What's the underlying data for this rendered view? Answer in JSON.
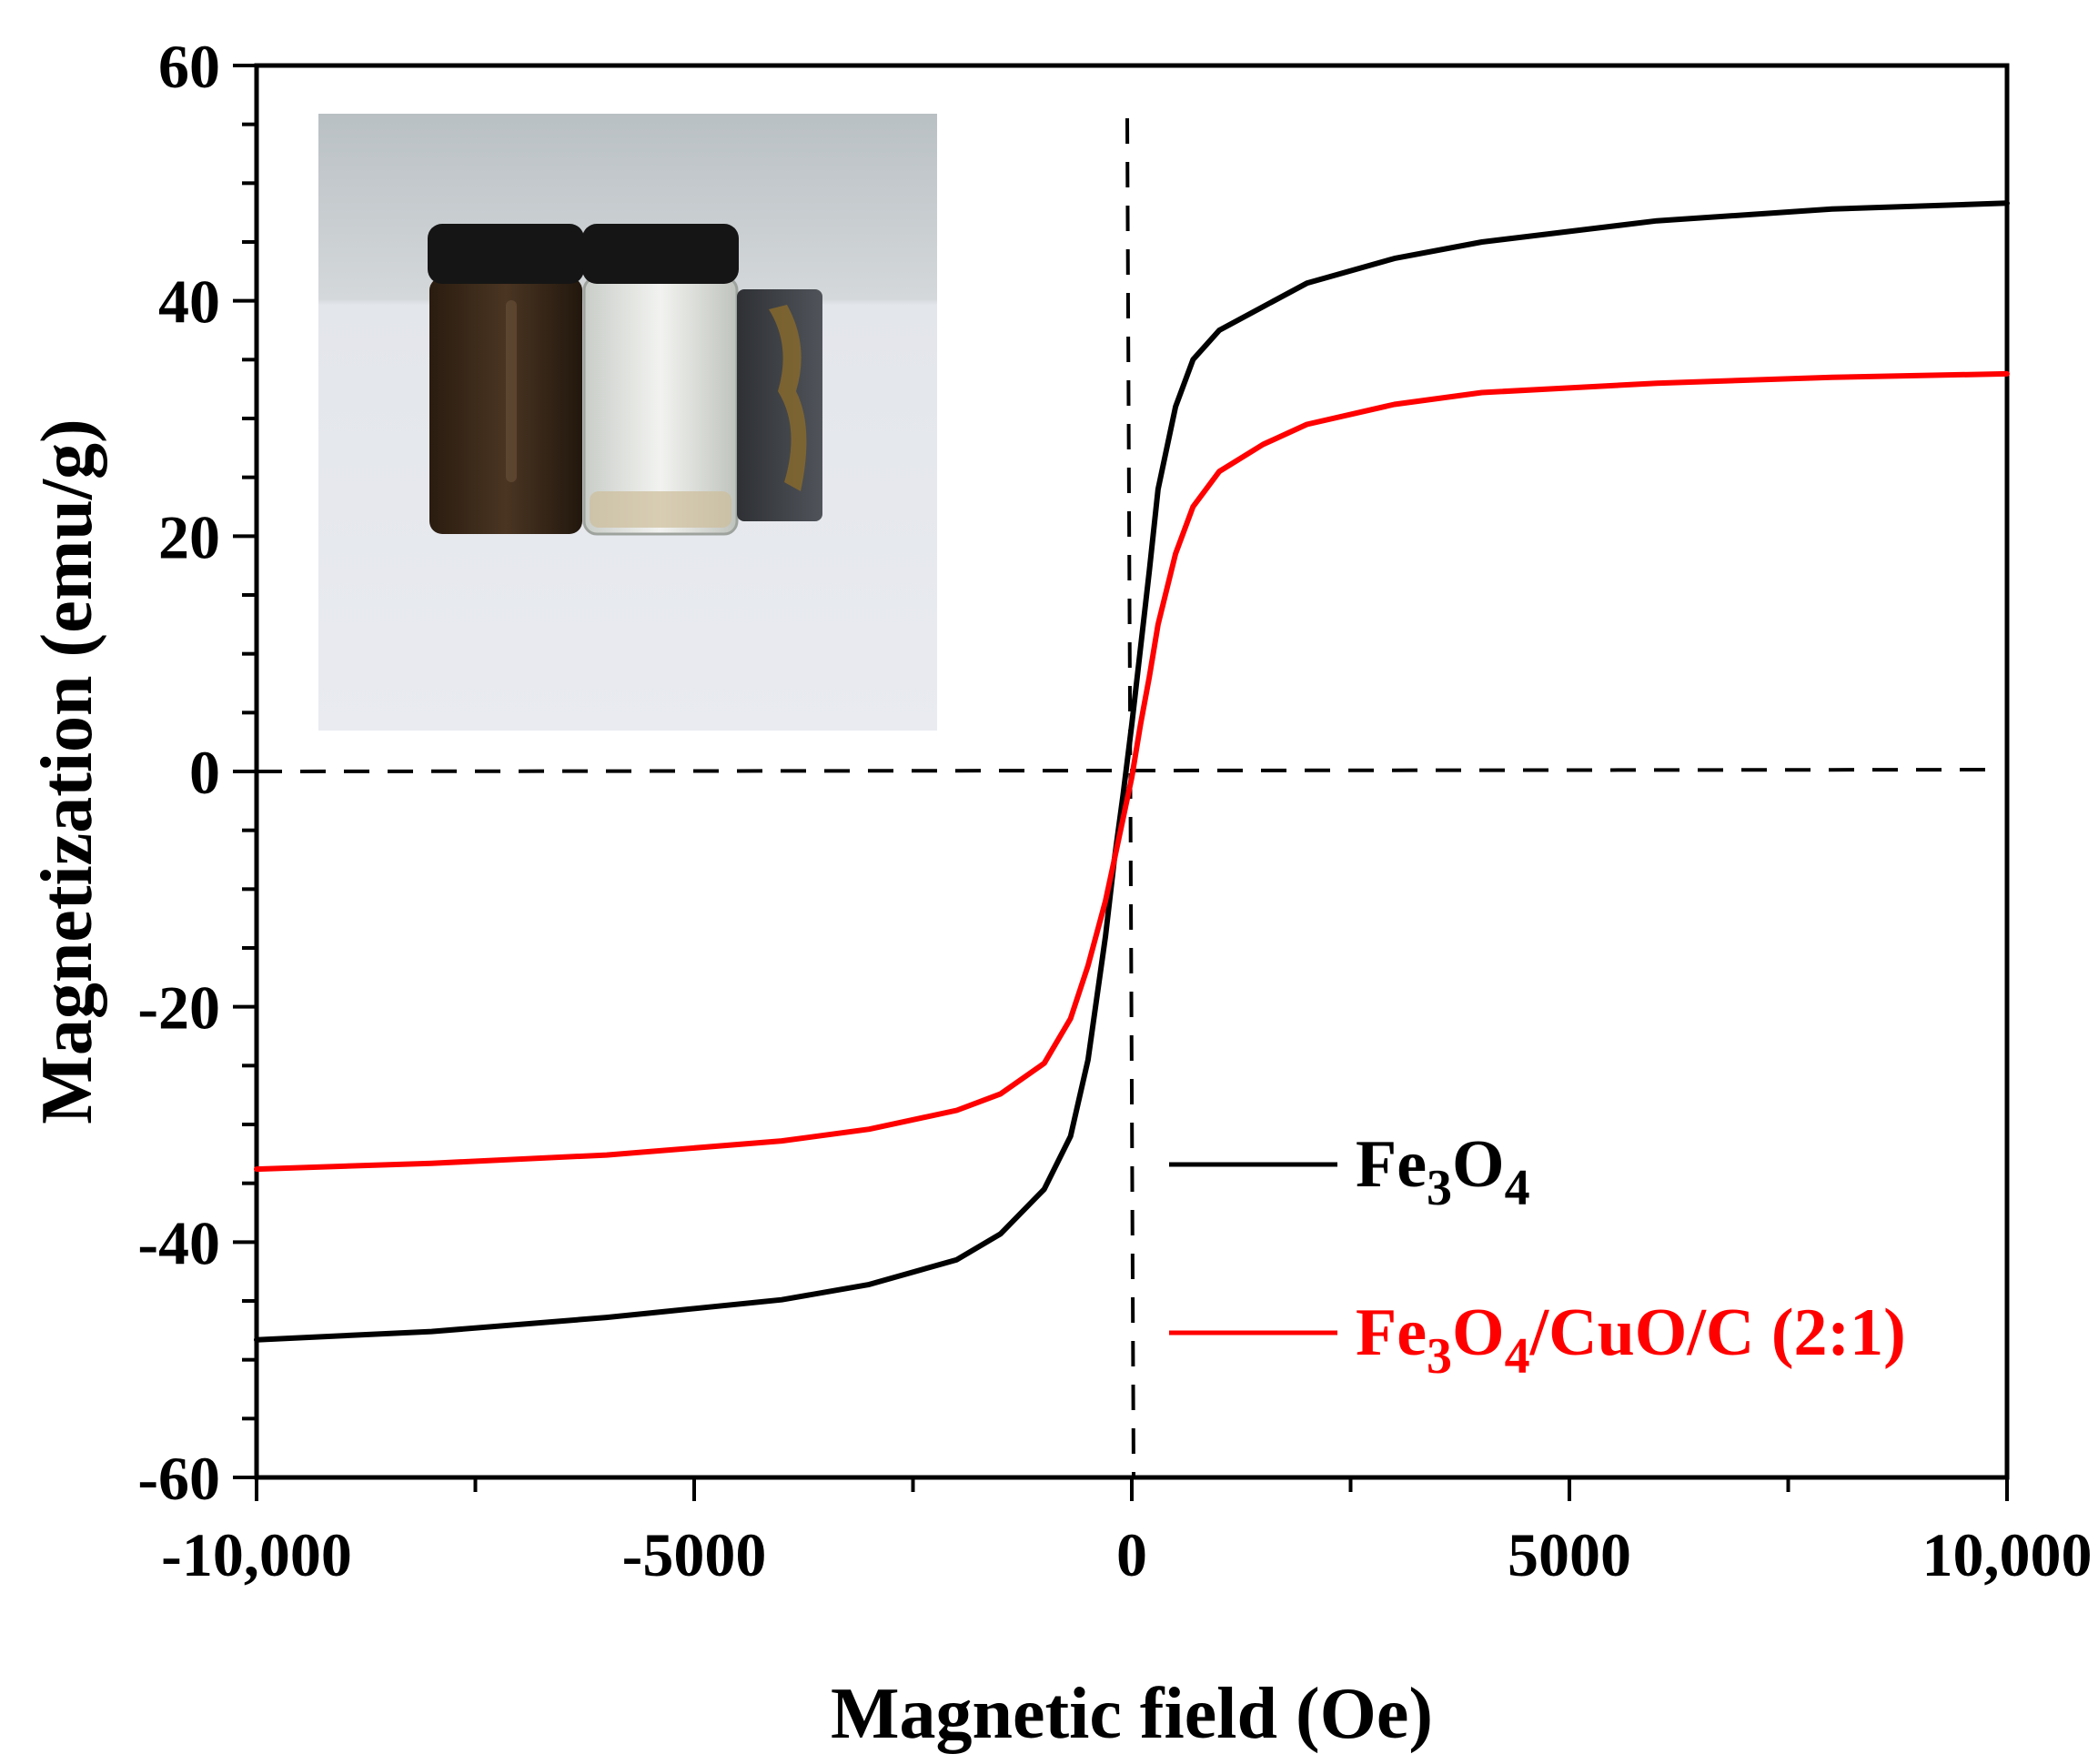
{
  "chart_data": {
    "type": "line",
    "xlabel": "Magnetic field (Oe)",
    "ylabel": "Magnetization (emu/g)",
    "xlim": [
      -10000,
      10000
    ],
    "ylim": [
      -60,
      60
    ],
    "x_ticks": [
      -10000,
      -5000,
      0,
      5000,
      10000
    ],
    "x_tick_labels": [
      "-10,000",
      "-5000",
      "0",
      "5000",
      "10,000"
    ],
    "y_ticks": [
      -60,
      -40,
      -20,
      0,
      20,
      40,
      60
    ],
    "y_tick_labels": [
      "-60",
      "-40",
      "-20",
      "0",
      "20",
      "40",
      "60"
    ],
    "reference_lines": [
      {
        "orientation": "horizontal",
        "value": 0,
        "style": "dashed"
      },
      {
        "orientation": "vertical",
        "value": 0,
        "style": "dashed"
      }
    ],
    "legend_position": "bottom-right",
    "series": [
      {
        "name_main": "Fe",
        "name_sub1": "3",
        "name_mid": "O",
        "name_sub2": "4",
        "name_rest": "",
        "color": "#000000",
        "x": [
          -10000,
          -8000,
          -6000,
          -4000,
          -3000,
          -2000,
          -1500,
          -1000,
          -700,
          -500,
          -300,
          -200,
          -100,
          0,
          100,
          200,
          300,
          500,
          700,
          1000,
          1500,
          2000,
          3000,
          4000,
          6000,
          8000,
          10000
        ],
        "y": [
          -48.3,
          -47.6,
          -46.4,
          -44.9,
          -43.6,
          -41.5,
          -39.3,
          -35.5,
          -31.0,
          -24.5,
          -14.0,
          -7.5,
          -2.0,
          4.0,
          10.5,
          17.0,
          24.0,
          31.0,
          35.0,
          37.5,
          39.5,
          41.5,
          43.6,
          45.0,
          46.8,
          47.8,
          48.3
        ]
      },
      {
        "name_main": "Fe",
        "name_sub1": "3",
        "name_mid": "O",
        "name_sub2": "4",
        "name_rest": "/CuO/C (2:1)",
        "color": "#ff0000",
        "x": [
          -10000,
          -8000,
          -6000,
          -4000,
          -3000,
          -2000,
          -1500,
          -1000,
          -700,
          -500,
          -300,
          -200,
          -100,
          0,
          100,
          200,
          300,
          500,
          700,
          1000,
          1500,
          2000,
          3000,
          4000,
          6000,
          8000,
          10000
        ],
        "y": [
          -33.8,
          -33.3,
          -32.6,
          -31.4,
          -30.4,
          -28.8,
          -27.4,
          -24.8,
          -21.0,
          -16.5,
          -11.0,
          -7.5,
          -4.0,
          -0.5,
          4.0,
          8.0,
          12.5,
          18.5,
          22.5,
          25.5,
          27.8,
          29.5,
          31.2,
          32.2,
          33.0,
          33.5,
          33.8
        ]
      }
    ],
    "inset_photo": {
      "vial_left_color": "#3d2b1a",
      "vial_right_color": "#d8dcd6",
      "cap_color": "#151515",
      "magnet_color": "#3e4146"
    }
  }
}
